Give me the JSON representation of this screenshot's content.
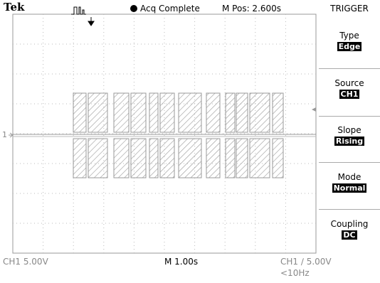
{
  "header": {
    "brand": "Tek",
    "status": "Acq Complete",
    "position": "M Pos: 2.600s"
  },
  "menu": {
    "title": "TRIGGER",
    "items": [
      {
        "label": "Type",
        "value": "Edge"
      },
      {
        "label": "Source",
        "value": "CH1"
      },
      {
        "label": "Slope",
        "value": "Rising"
      },
      {
        "label": "Mode",
        "value": "Normal"
      },
      {
        "label": "Coupling",
        "value": "DC"
      }
    ]
  },
  "channel_marker": "1",
  "footer": {
    "channel_scale": "CH1  5.00V",
    "timebase": "M 1.00s",
    "trigger": "CH1 ∕ 5.00V",
    "frequency": "<10Hz"
  }
}
